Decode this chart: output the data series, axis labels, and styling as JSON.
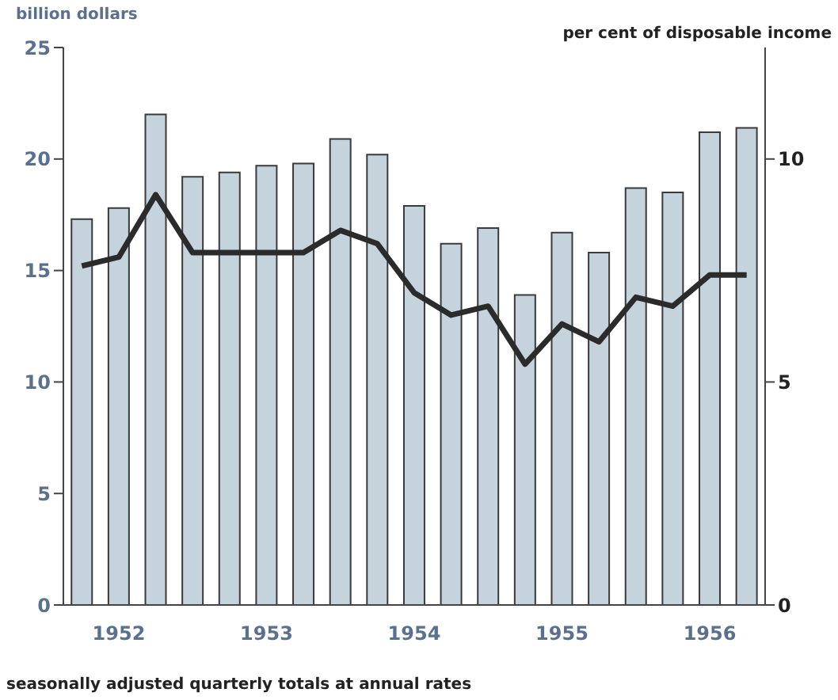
{
  "chart_data": {
    "type": "bar",
    "ylabel": "billion dollars",
    "y2label": "per cent of disposable income",
    "categories": [
      null,
      "1952",
      null,
      null,
      null,
      "1953",
      null,
      null,
      null,
      "1954",
      null,
      null,
      null,
      "1955",
      null,
      null,
      null,
      "1956",
      null
    ],
    "series": [
      {
        "color": "#c5d3dc",
        "values": [
          17.3,
          17.8,
          22.0,
          19.2,
          19.4,
          19.7,
          19.8,
          20.9,
          20.2,
          17.9,
          16.2,
          16.9,
          13.9,
          16.7,
          15.8,
          18.7,
          18.5,
          21.2,
          21.4
        ]
      },
      {
        "type": "line",
        "axis": "y2",
        "color": "#2b2b2b",
        "values": [
          7.6,
          7.8,
          9.2,
          7.9,
          7.9,
          7.9,
          7.9,
          8.4,
          8.1,
          7.0,
          6.5,
          6.7,
          5.4,
          6.3,
          5.9,
          6.9,
          6.7,
          7.4,
          7.4
        ]
      }
    ],
    "ylim": [
      0,
      25
    ],
    "yticks": [
      0,
      5,
      10,
      15,
      20,
      25
    ],
    "y2lim": [
      0,
      12.5
    ],
    "y2ticks": [
      0,
      5,
      10
    ],
    "grid": false,
    "legend": false,
    "marker": "none",
    "line_style": "solid",
    "annotations": [
      "seasonally adjusted quarterly totals at annual rates"
    ]
  }
}
